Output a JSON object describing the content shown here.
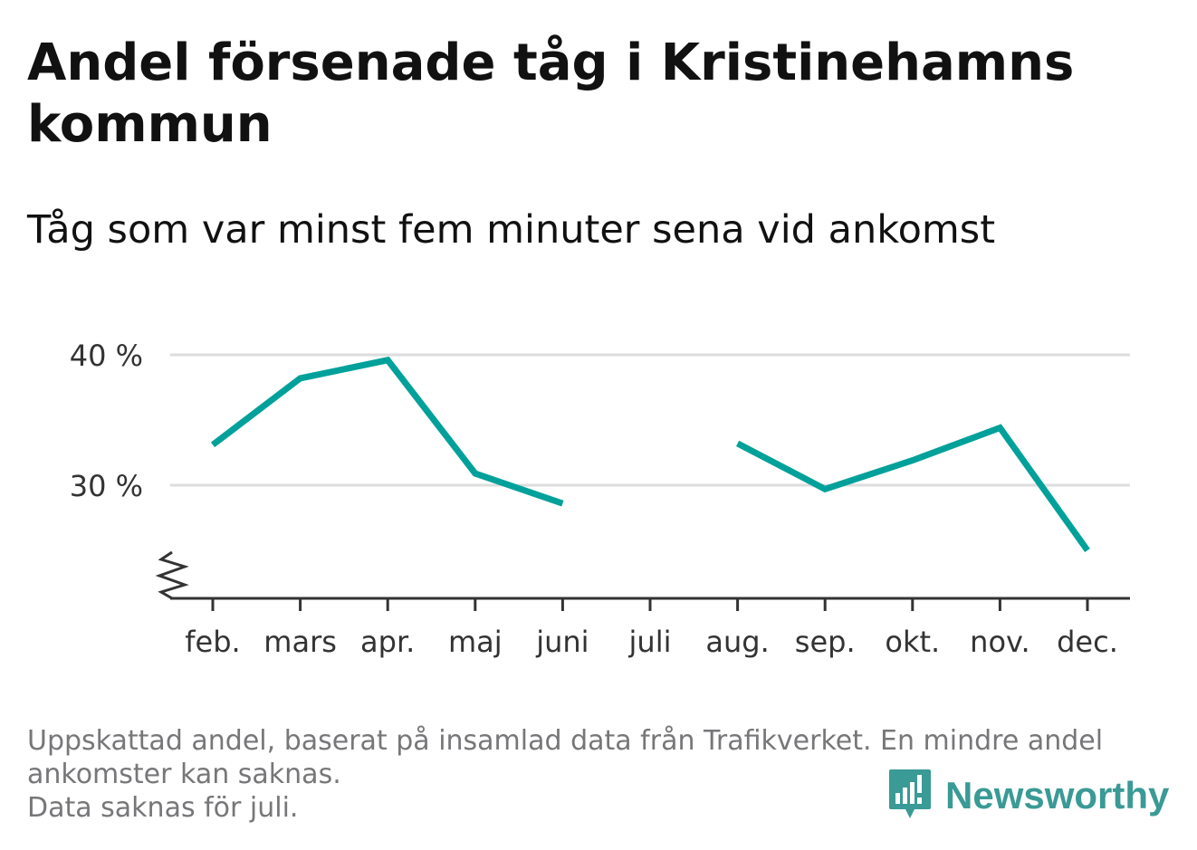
{
  "header": {
    "title": "Andel försenade tåg i Kristinehamns kommun",
    "subtitle": "Tåg som var minst fem minuter sena vid ankomst"
  },
  "chart_data": {
    "type": "line",
    "categories": [
      "feb.",
      "mars",
      "apr.",
      "maj",
      "juni",
      "juli",
      "aug.",
      "sep.",
      "okt.",
      "nov.",
      "dec."
    ],
    "series": [
      {
        "values": [
          33.1,
          38.2,
          39.6,
          30.9,
          28.6,
          null,
          33.2,
          29.7,
          31.9,
          34.4,
          25.0
        ],
        "color": "#00a19a"
      }
    ],
    "yticks": [
      30,
      40
    ],
    "ytick_labels": [
      "30 %",
      "40 %"
    ],
    "ylim": [
      21.5,
      42
    ],
    "axis_break": true,
    "grid": true,
    "colors": {
      "line": "#00a19a",
      "grid": "#dddddd",
      "axis": "#333333"
    }
  },
  "footnote": {
    "lines": [
      "Uppskattad andel, baserat på insamlad data från Trafikverket. En mindre andel",
      "ankomster kan saknas.",
      "Data saknas för juli."
    ]
  },
  "brand": {
    "name": "Newsworthy",
    "icon": "bar-chart-speech-bubble-icon",
    "color": "#3a9a95"
  }
}
